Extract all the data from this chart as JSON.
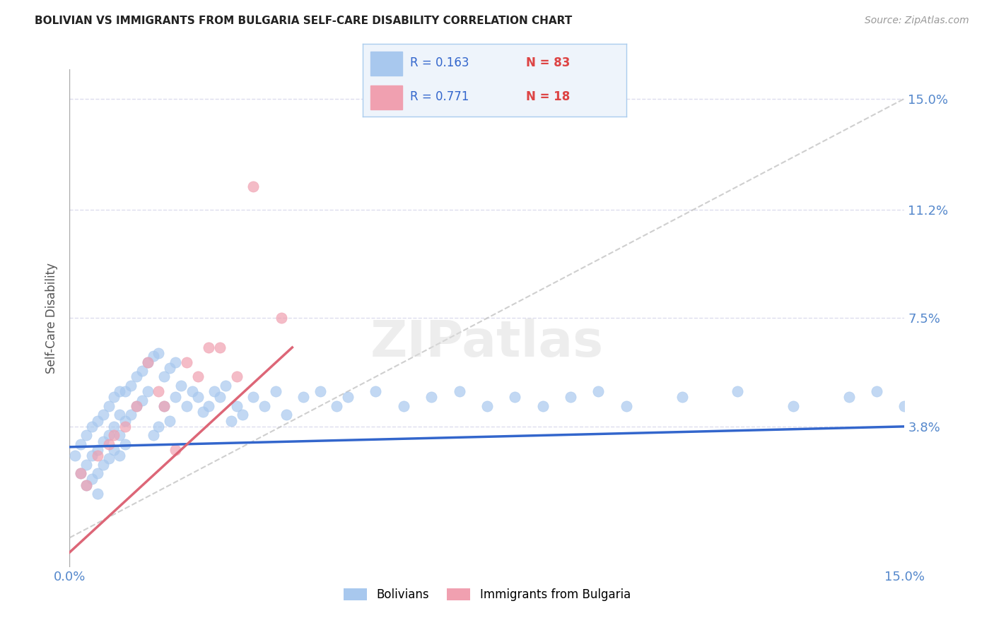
{
  "title": "BOLIVIAN VS IMMIGRANTS FROM BULGARIA SELF-CARE DISABILITY CORRELATION CHART",
  "source": "Source: ZipAtlas.com",
  "xlim": [
    0.0,
    0.15
  ],
  "ylim": [
    -0.01,
    0.16
  ],
  "ylabel_ticks": [
    "15.0%",
    "11.2%",
    "7.5%",
    "3.8%"
  ],
  "ylabel_values": [
    0.15,
    0.112,
    0.075,
    0.038
  ],
  "series1_label": "Bolivians",
  "series1_color": "#A8C8EE",
  "series1_R": "0.163",
  "series1_N": "83",
  "series2_label": "Immigrants from Bulgaria",
  "series2_color": "#F0A0B0",
  "series2_R": "0.771",
  "series2_N": "18",
  "trendline1_color": "#3366CC",
  "trendline2_color": "#DD6677",
  "refline_color": "#BBBBBB",
  "background_color": "#FFFFFF",
  "grid_color": "#DDDDEE",
  "bolivians_x": [
    0.001,
    0.002,
    0.002,
    0.003,
    0.003,
    0.003,
    0.004,
    0.004,
    0.004,
    0.005,
    0.005,
    0.005,
    0.005,
    0.006,
    0.006,
    0.006,
    0.007,
    0.007,
    0.007,
    0.008,
    0.008,
    0.008,
    0.009,
    0.009,
    0.009,
    0.009,
    0.01,
    0.01,
    0.01,
    0.011,
    0.011,
    0.012,
    0.012,
    0.013,
    0.013,
    0.014,
    0.014,
    0.015,
    0.015,
    0.016,
    0.016,
    0.017,
    0.017,
    0.018,
    0.018,
    0.019,
    0.019,
    0.02,
    0.021,
    0.022,
    0.023,
    0.024,
    0.025,
    0.026,
    0.027,
    0.028,
    0.029,
    0.03,
    0.031,
    0.033,
    0.035,
    0.037,
    0.039,
    0.042,
    0.045,
    0.048,
    0.05,
    0.055,
    0.06,
    0.065,
    0.07,
    0.075,
    0.08,
    0.085,
    0.09,
    0.095,
    0.1,
    0.11,
    0.12,
    0.13,
    0.14,
    0.145,
    0.15
  ],
  "bolivians_y": [
    0.028,
    0.032,
    0.022,
    0.035,
    0.025,
    0.018,
    0.038,
    0.028,
    0.02,
    0.04,
    0.03,
    0.022,
    0.015,
    0.042,
    0.033,
    0.025,
    0.045,
    0.035,
    0.027,
    0.048,
    0.038,
    0.03,
    0.05,
    0.042,
    0.035,
    0.028,
    0.05,
    0.04,
    0.032,
    0.052,
    0.042,
    0.055,
    0.045,
    0.057,
    0.047,
    0.06,
    0.05,
    0.062,
    0.035,
    0.063,
    0.038,
    0.055,
    0.045,
    0.058,
    0.04,
    0.06,
    0.048,
    0.052,
    0.045,
    0.05,
    0.048,
    0.043,
    0.045,
    0.05,
    0.048,
    0.052,
    0.04,
    0.045,
    0.042,
    0.048,
    0.045,
    0.05,
    0.042,
    0.048,
    0.05,
    0.045,
    0.048,
    0.05,
    0.045,
    0.048,
    0.05,
    0.045,
    0.048,
    0.045,
    0.048,
    0.05,
    0.045,
    0.048,
    0.05,
    0.045,
    0.048,
    0.05,
    0.045
  ],
  "bulgaria_x": [
    0.002,
    0.003,
    0.005,
    0.007,
    0.008,
    0.01,
    0.012,
    0.014,
    0.016,
    0.017,
    0.019,
    0.021,
    0.023,
    0.025,
    0.027,
    0.03,
    0.033,
    0.038
  ],
  "bulgaria_y": [
    0.022,
    0.018,
    0.028,
    0.032,
    0.035,
    0.038,
    0.045,
    0.06,
    0.05,
    0.045,
    0.03,
    0.06,
    0.055,
    0.065,
    0.065,
    0.055,
    0.12,
    0.075
  ],
  "trendline1_x0": 0.0,
  "trendline1_y0": 0.031,
  "trendline1_x1": 0.15,
  "trendline1_y1": 0.038,
  "trendline2_x0": 0.0,
  "trendline2_y0": -0.005,
  "trendline2_x1": 0.04,
  "trendline2_y1": 0.065
}
